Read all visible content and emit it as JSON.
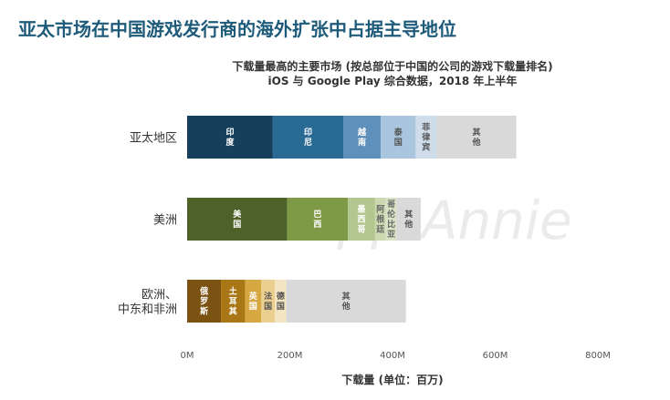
{
  "page_title": "亚太市场在中国游戏发行商的海外扩张中占据主导地位",
  "watermark": "App Annie",
  "colors": {
    "india": "#163f5c",
    "indonesia": "#2a6b95",
    "vietnam": "#5f8fbb",
    "thailand": "#a9c6de",
    "philippines": "#cfdce9",
    "other": "#d9d9d9",
    "usa": "#4e6129",
    "brazil": "#7f9a47",
    "mexico": "#b3c68f",
    "usa_other": "#d9e2c5",
    "russia": "#7b5212",
    "turkey": "#a97716",
    "uk": "#d7a742",
    "france": "#ebcf8e",
    "germany": "#f4e5c2"
  },
  "chart_data": {
    "type": "bar",
    "orientation": "horizontal",
    "stacked": true,
    "title": "下载量最高的主要市场 (按总部位于中国的公司的游戏下载量排名)",
    "subtitle": "iOS 与 Google Play 综合数据，2018 年上半年",
    "xlabel": "下载量 (单位：百万)",
    "ylabel": "",
    "xlim": [
      0,
      800
    ],
    "xticks": [
      "0M",
      "200M",
      "400M",
      "600M",
      "800M"
    ],
    "grid": false,
    "legend": "none",
    "categories": [
      {
        "name": "亚太地区",
        "segments": [
          {
            "label": "印度",
            "value": 167,
            "color": "#163f5c",
            "text_color": "#ffffff"
          },
          {
            "label": "印尼",
            "value": 137,
            "color": "#2a6b95",
            "text_color": "#ffffff"
          },
          {
            "label": "越南",
            "value": 73,
            "color": "#5f8fbb",
            "text_color": "#ffffff"
          },
          {
            "label": "泰国",
            "value": 68,
            "color": "#a9c6de",
            "text_color": "#555555"
          },
          {
            "label": "菲律宾",
            "value": 41,
            "color": "#cfdce9",
            "text_color": "#555555"
          },
          {
            "label": "其他",
            "value": 155,
            "color": "#d9d9d9",
            "text_color": "#555555"
          }
        ]
      },
      {
        "name": "美洲",
        "segments": [
          {
            "label": "美国",
            "value": 195,
            "color": "#4e6129",
            "text_color": "#ffffff"
          },
          {
            "label": "巴西",
            "value": 118,
            "color": "#7f9a47",
            "text_color": "#ffffff"
          },
          {
            "label": "墨西哥",
            "value": 53,
            "color": "#b3c68f",
            "text_color": "#ffffff"
          },
          {
            "label": "阿根廷",
            "value": 21,
            "color": "#cbd8b0",
            "text_color": "#666666"
          },
          {
            "label": "哥伦比亚",
            "value": 21,
            "color": "#d9e2c5",
            "text_color": "#666666"
          },
          {
            "label": "其他",
            "value": 47,
            "color": "#d9d9d9",
            "text_color": "#555555"
          }
        ]
      },
      {
        "name": "欧洲、\n中东和非洲",
        "segments": [
          {
            "label": "俄罗斯",
            "value": 66,
            "color": "#7b5212",
            "text_color": "#ffffff"
          },
          {
            "label": "土耳其",
            "value": 47,
            "color": "#a97716",
            "text_color": "#ffffff"
          },
          {
            "label": "英国",
            "value": 31,
            "color": "#d7a742",
            "text_color": "#ffffff"
          },
          {
            "label": "法国",
            "value": 27,
            "color": "#ebcf8e",
            "text_color": "#555555"
          },
          {
            "label": "德国",
            "value": 22,
            "color": "#f4e5c2",
            "text_color": "#555555"
          },
          {
            "label": "其他",
            "value": 233,
            "color": "#d9d9d9",
            "text_color": "#555555"
          }
        ]
      }
    ]
  }
}
